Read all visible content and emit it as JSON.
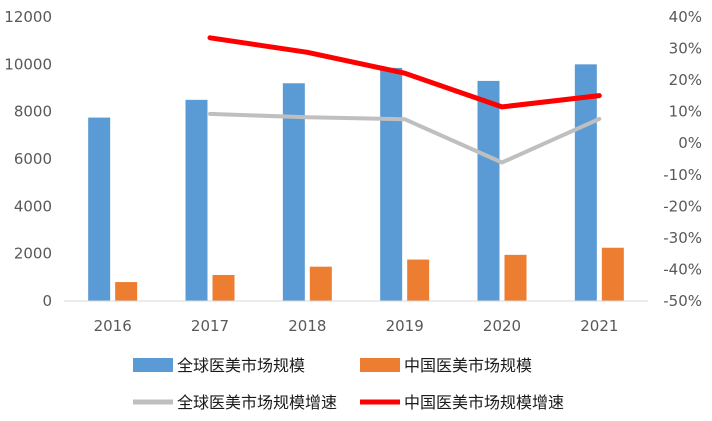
{
  "chart_data": {
    "type": "bar",
    "categories": [
      "2016",
      "2017",
      "2018",
      "2019",
      "2020",
      "2021"
    ],
    "bar_series": [
      {
        "name": "全球医美市场规模",
        "axis": "left",
        "color": "#5b9bd5",
        "values": [
          7750,
          8500,
          9200,
          9850,
          9300,
          10000
        ]
      },
      {
        "name": "中国医美市场规模",
        "axis": "left",
        "color": "#ed7d31",
        "values": [
          800,
          1100,
          1450,
          1750,
          1950,
          2250
        ]
      }
    ],
    "line_series": [
      {
        "name": "全球医美市场规模增速",
        "axis": "right",
        "color": "#bfbfbf",
        "values": [
          null,
          0.093,
          0.082,
          0.076,
          -0.061,
          0.077
        ]
      },
      {
        "name": "中国医美市场规模增速",
        "axis": "right",
        "color": "#ff0000",
        "values": [
          null,
          0.334,
          0.288,
          0.222,
          0.115,
          0.151
        ]
      }
    ],
    "left_axis": {
      "min": 0,
      "max": 12000,
      "step": 2000,
      "tick_labels": [
        "0",
        "2000",
        "4000",
        "6000",
        "8000",
        "10000",
        "12000"
      ]
    },
    "right_axis": {
      "min": -0.5,
      "max": 0.4,
      "step": 0.1,
      "tick_labels": [
        "-50%",
        "-40%",
        "-30%",
        "-20%",
        "-10%",
        "0%",
        "10%",
        "20%",
        "30%",
        "40%"
      ]
    },
    "legend": {
      "placement": "bottom",
      "columns": 2
    },
    "grid": false,
    "title": "",
    "xlabel": "",
    "ylabel": ""
  }
}
